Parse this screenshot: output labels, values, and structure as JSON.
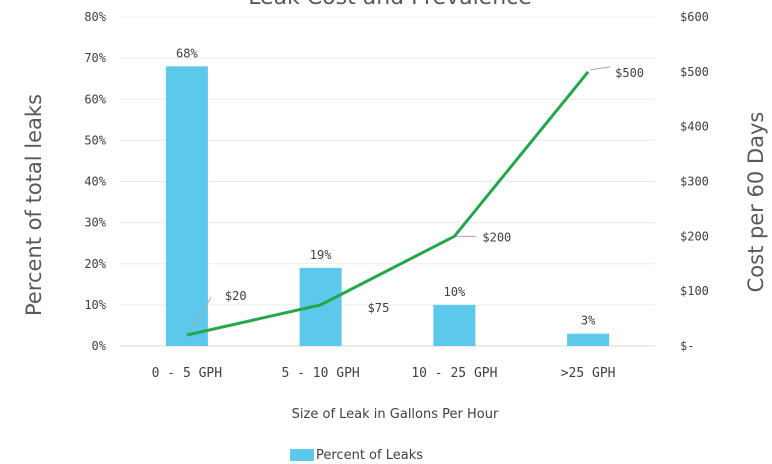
{
  "chart_data": {
    "type": "bar",
    "title": "Leak Cost and Prevalence",
    "xlabel": "Size of Leak in Gallons Per Hour",
    "ylabel": "Percent of total leaks",
    "ylabel_right": "Cost per 60 Days",
    "categories": [
      "0 - 5 GPH",
      "5 - 10 GPH",
      "10 - 25 GPH",
      ">25 GPH"
    ],
    "series": [
      {
        "name": "Percent of Leaks",
        "type": "bar",
        "axis": "left",
        "values": [
          68,
          19,
          10,
          3
        ],
        "labels": [
          "68%",
          "19%",
          "10%",
          "3%"
        ],
        "color": "#5bc8ec"
      },
      {
        "type": "line",
        "axis": "right",
        "values": [
          20,
          75,
          200,
          500
        ],
        "labels": [
          "$20",
          "$75",
          "$200",
          "$500"
        ],
        "color": "#22a84a"
      }
    ],
    "ylim": [
      0,
      80
    ],
    "y_ticks": [
      "0%",
      "10%",
      "20%",
      "30%",
      "40%",
      "50%",
      "60%",
      "70%",
      "80%"
    ],
    "y2lim": [
      0,
      600
    ],
    "y2_ticks": [
      "$-",
      "$100",
      "$200",
      "$300",
      "$400",
      "$500",
      "$600"
    ],
    "grid": true,
    "legend_position": "bottom"
  }
}
